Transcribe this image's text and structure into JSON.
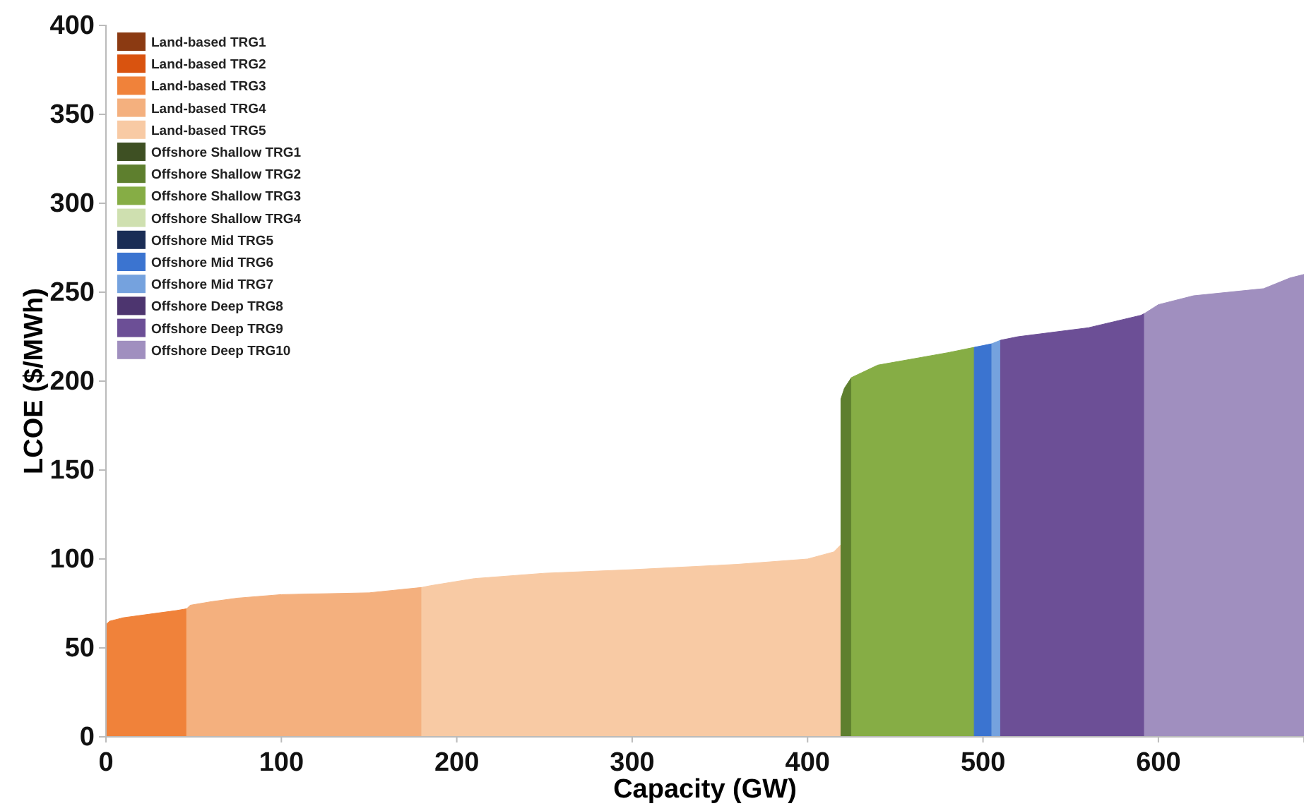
{
  "chart_data": {
    "type": "area",
    "xlabel": "Capacity (GW)",
    "ylabel": "LCOE ($/MWh)",
    "xlim": [
      0,
      683
    ],
    "xticks": [
      0,
      100,
      200,
      300,
      400,
      500,
      600
    ],
    "ylim": [
      0,
      400
    ],
    "yticks": [
      0,
      50,
      100,
      150,
      200,
      250,
      300,
      350,
      400
    ],
    "grid": false,
    "legend": "top left",
    "series": [
      {
        "name": "Land-based TRG1",
        "color": "#8b3a12"
      },
      {
        "name": "Land-based TRG2",
        "color": "#d9530f"
      },
      {
        "name": "Land-based TRG3",
        "color": "#f0823a",
        "x": [
          0,
          2,
          10,
          25,
          40,
          46
        ],
        "values": [
          63,
          65,
          67,
          69,
          71,
          72
        ]
      },
      {
        "name": "Land-based TRG4",
        "color": "#f4b07e",
        "x": [
          46,
          48,
          60,
          75,
          100,
          150,
          180
        ],
        "values": [
          72,
          74,
          76,
          78,
          80,
          81,
          84
        ]
      },
      {
        "name": "Land-based TRG5",
        "color": "#f8caa4",
        "x": [
          180,
          185,
          210,
          250,
          300,
          360,
          400,
          415,
          419
        ],
        "values": [
          84,
          85,
          89,
          92,
          94,
          97,
          100,
          104,
          108
        ]
      },
      {
        "name": "Offshore Shallow TRG1",
        "color": "#3e5023"
      },
      {
        "name": "Offshore Shallow TRG2",
        "color": "#5e7f2e",
        "x": [
          419,
          421,
          425
        ],
        "values": [
          190,
          196,
          202
        ]
      },
      {
        "name": "Offshore Shallow TRG3",
        "color": "#86ad45",
        "x": [
          425,
          440,
          480,
          495
        ],
        "values": [
          202,
          209,
          216,
          219
        ]
      },
      {
        "name": "Offshore Shallow TRG4",
        "color": "#cfe0b0"
      },
      {
        "name": "Offshore Mid TRG5",
        "color": "#1a2d55"
      },
      {
        "name": "Offshore Mid TRG6",
        "color": "#3b74d0",
        "x": [
          495,
          500,
          505
        ],
        "values": [
          219,
          220,
          221
        ]
      },
      {
        "name": "Offshore Mid TRG7",
        "color": "#75a2de",
        "x": [
          505,
          510
        ],
        "values": [
          221,
          223
        ]
      },
      {
        "name": "Offshore Deep TRG8",
        "color": "#4d356f"
      },
      {
        "name": "Offshore Deep TRG9",
        "color": "#6c4f96",
        "x": [
          510,
          520,
          560,
          590,
          592
        ],
        "values": [
          223,
          225,
          230,
          237,
          238
        ]
      },
      {
        "name": "Offshore Deep TRG10",
        "color": "#a08fbf",
        "x": [
          592,
          600,
          620,
          660,
          675,
          683
        ],
        "values": [
          238,
          243,
          248,
          252,
          258,
          260
        ]
      }
    ]
  }
}
